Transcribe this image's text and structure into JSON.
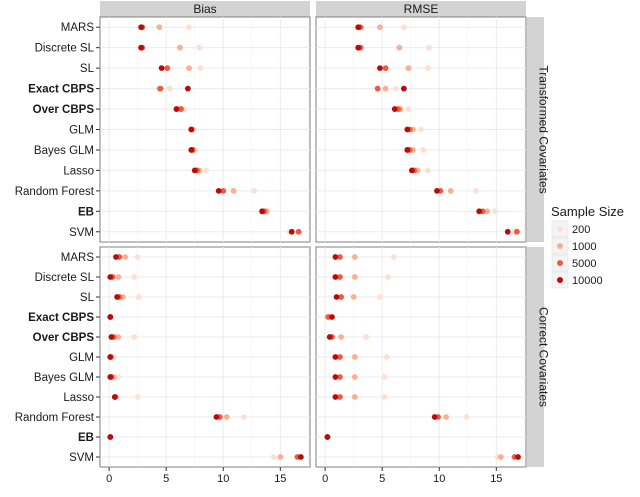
{
  "chart_data": {
    "type": "scatter",
    "title": "",
    "xlabel": "",
    "ylabel": "",
    "facet_columns": [
      "Bias",
      "RMSE"
    ],
    "facet_rows": [
      "Transformed Covariates",
      "Correct Covariates"
    ],
    "methods": [
      "MARS",
      "Discrete SL",
      "SL",
      "Exact CBPS",
      "Over CBPS",
      "GLM",
      "Bayes GLM",
      "Lasso",
      "Random Forest",
      "EB",
      "SVM"
    ],
    "bold_methods": [
      "Exact CBPS",
      "Over CBPS",
      "EB"
    ],
    "x_ticks": [
      0,
      5,
      10,
      15
    ],
    "xlim": [
      -0.8,
      17.6
    ],
    "grid": true,
    "legend": {
      "title": "Sample Size",
      "position": "right",
      "entries": [
        {
          "label": "200",
          "color": "#fee0d2"
        },
        {
          "label": "1000",
          "color": "#fcae91"
        },
        {
          "label": "5000",
          "color": "#ef5a3f"
        },
        {
          "label": "10000",
          "color": "#bb0a0a"
        }
      ]
    },
    "panels": [
      {
        "row": "Transformed Covariates",
        "column": "Bias",
        "points": {
          "MARS": [
            7.0,
            4.4,
            2.9,
            2.8
          ],
          "Discrete SL": [
            7.9,
            6.2,
            2.9,
            2.8
          ],
          "SL": [
            8.0,
            7.0,
            5.1,
            4.6
          ],
          "Exact CBPS": [
            5.3,
            4.4,
            4.5,
            6.9
          ],
          "Over CBPS": [
            6.6,
            6.2,
            6.3,
            5.9
          ],
          "GLM": [
            7.4,
            7.3,
            7.2,
            7.2
          ],
          "Bayes GLM": [
            7.5,
            7.4,
            7.3,
            7.2
          ],
          "Lasso": [
            8.5,
            7.9,
            7.7,
            7.5
          ],
          "Random Forest": [
            12.7,
            10.9,
            10.0,
            9.6
          ],
          "EB": [
            13.9,
            13.8,
            13.6,
            13.4
          ],
          "SVM": [
            15.8,
            16.6,
            16.6,
            16.0
          ]
        }
      },
      {
        "row": "Transformed Covariates",
        "column": "RMSE",
        "points": {
          "MARS": [
            6.9,
            4.8,
            3.1,
            2.9
          ],
          "Discrete SL": [
            9.1,
            6.5,
            3.1,
            2.9
          ],
          "SL": [
            9.0,
            7.3,
            5.3,
            4.8
          ],
          "Exact CBPS": [
            6.2,
            5.3,
            4.6,
            6.9
          ],
          "Over CBPS": [
            7.3,
            6.6,
            6.4,
            6.1
          ],
          "GLM": [
            8.4,
            7.7,
            7.4,
            7.2
          ],
          "Bayes GLM": [
            8.6,
            7.7,
            7.4,
            7.2
          ],
          "Lasso": [
            9.0,
            8.1,
            7.8,
            7.6
          ],
          "Random Forest": [
            13.2,
            11.0,
            10.1,
            9.8
          ],
          "EB": [
            14.9,
            14.2,
            13.8,
            13.5
          ],
          "SVM": [
            16.5,
            16.8,
            16.8,
            16.0
          ]
        }
      },
      {
        "row": "Correct Covariates",
        "column": "Bias",
        "points": {
          "MARS": [
            2.5,
            1.4,
            0.9,
            0.6
          ],
          "Discrete SL": [
            2.2,
            0.8,
            0.3,
            0.1
          ],
          "SL": [
            2.6,
            1.2,
            0.9,
            0.7
          ],
          "Exact CBPS": [
            0.1,
            0.1,
            0.1,
            0.1
          ],
          "Over CBPS": [
            2.2,
            0.8,
            0.4,
            0.2
          ],
          "GLM": [
            0.4,
            0.2,
            0.1,
            0.1
          ],
          "Bayes GLM": [
            0.8,
            0.4,
            0.2,
            0.1
          ],
          "Lasso": [
            2.5,
            0.6,
            0.5,
            0.5
          ],
          "Random Forest": [
            11.8,
            10.3,
            9.7,
            9.4
          ],
          "EB": [
            0.1,
            0.1,
            0.1,
            0.1
          ],
          "SVM": [
            14.4,
            15.0,
            16.5,
            16.8
          ]
        }
      },
      {
        "row": "Correct Covariates",
        "column": "RMSE",
        "points": {
          "MARS": [
            6.0,
            2.6,
            1.3,
            0.9
          ],
          "Discrete SL": [
            5.5,
            2.6,
            1.3,
            0.9
          ],
          "SL": [
            4.8,
            2.5,
            1.4,
            1.0
          ],
          "Exact CBPS": [
            0.2,
            0.2,
            0.3,
            0.6
          ],
          "Over CBPS": [
            3.6,
            1.4,
            0.6,
            0.4
          ],
          "GLM": [
            5.4,
            2.6,
            1.3,
            0.9
          ],
          "Bayes GLM": [
            5.2,
            2.6,
            1.3,
            0.9
          ],
          "Lasso": [
            5.2,
            2.6,
            1.3,
            0.9
          ],
          "Random Forest": [
            12.4,
            10.6,
            9.9,
            9.6
          ],
          "EB": [
            0.2,
            0.2,
            0.2,
            0.2
          ],
          "SVM": [
            15.1,
            15.4,
            16.6,
            16.9
          ]
        }
      }
    ]
  }
}
